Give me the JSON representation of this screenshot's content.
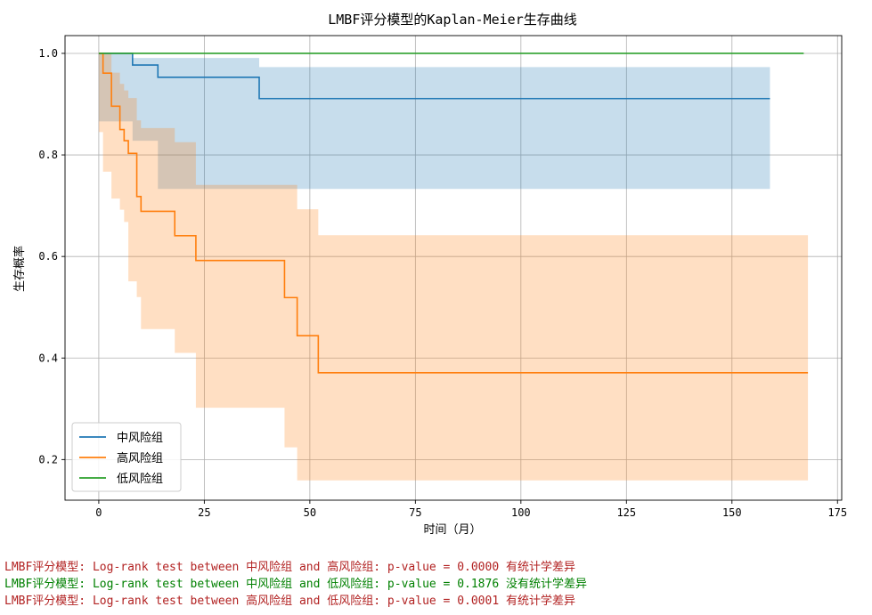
{
  "chart_data": {
    "type": "line",
    "title": "LMBF评分模型的Kaplan-Meier生存曲线",
    "xlabel": "时间（月）",
    "ylabel": "生存概率",
    "xlim": [
      -8,
      176
    ],
    "ylim": [
      0.12,
      1.035
    ],
    "xticks": [
      0,
      25,
      50,
      75,
      100,
      125,
      150,
      175
    ],
    "yticks": [
      0.2,
      0.4,
      0.6,
      0.8,
      1.0
    ],
    "xtick_labels": [
      "0",
      "25",
      "50",
      "75",
      "100",
      "125",
      "150",
      "175"
    ],
    "ytick_labels": [
      "0.2",
      "0.4",
      "0.6",
      "0.8",
      "1.0"
    ],
    "grid": true,
    "legend_position": "lower-left",
    "series": [
      {
        "name": "中风险组",
        "color": "#1f77b4",
        "step_x": [
          0,
          8,
          14,
          38,
          159
        ],
        "step_y": [
          1.0,
          0.977,
          0.953,
          0.911,
          0.911
        ],
        "ci_x": [
          0,
          8,
          14,
          38,
          159
        ],
        "ci_upper": [
          1.0,
          0.991,
          0.991,
          0.973,
          0.973
        ],
        "ci_lower": [
          1.0,
          0.866,
          0.828,
          0.733,
          0.733
        ]
      },
      {
        "name": "高风险组",
        "color": "#ff7f0e",
        "step_x": [
          0,
          1,
          3,
          5,
          6,
          7,
          9,
          10,
          18,
          23,
          44,
          47,
          52,
          168
        ],
        "step_y": [
          1.0,
          0.961,
          0.896,
          0.85,
          0.828,
          0.803,
          0.718,
          0.689,
          0.641,
          0.592,
          0.519,
          0.444,
          0.371,
          0.371
        ],
        "ci_x": [
          0,
          1,
          3,
          5,
          6,
          7,
          9,
          10,
          18,
          23,
          44,
          47,
          52,
          168
        ],
        "ci_upper": [
          1.0,
          1.0,
          0.962,
          0.94,
          0.927,
          0.912,
          0.868,
          0.853,
          0.825,
          0.741,
          0.741,
          0.693,
          0.642,
          0.584
        ],
        "ci_lower": [
          1.0,
          0.845,
          0.767,
          0.714,
          0.692,
          0.668,
          0.551,
          0.52,
          0.457,
          0.41,
          0.302,
          0.224,
          0.159,
          0.159
        ]
      },
      {
        "name": "低风险组",
        "color": "#2ca02c",
        "step_x": [
          0,
          167
        ],
        "step_y": [
          1.0,
          1.0
        ]
      }
    ]
  },
  "log_lines": [
    {
      "text": "LMBF评分模型: Log-rank test between 中风险组 and 高风险组: p-value = 0.0000 有统计学差异",
      "color": "#b22222"
    },
    {
      "text": "LMBF评分模型: Log-rank test between 中风险组 and 低风险组: p-value = 0.1876 没有统计学差异",
      "color": "#008000"
    },
    {
      "text": "LMBF评分模型: Log-rank test between 高风险组 and 低风险组: p-value = 0.0001 有统计学差异",
      "color": "#b22222"
    }
  ]
}
